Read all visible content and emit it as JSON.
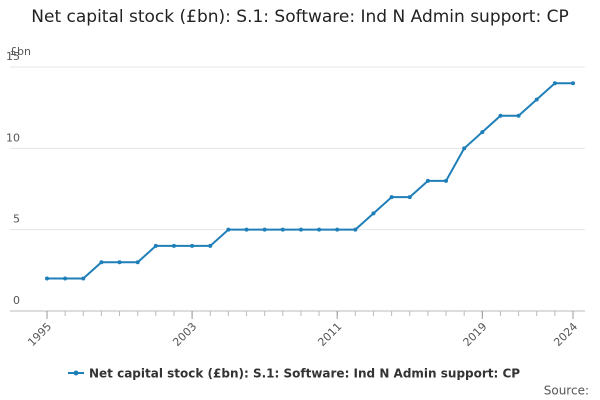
{
  "chart_data": {
    "type": "line",
    "title": "Net capital stock (£bn): S.1: Software: Ind N Admin support: CP",
    "y_label": "£bn",
    "source_label": "Source:",
    "x": [
      1995,
      1996,
      1997,
      1998,
      1999,
      2000,
      2001,
      2002,
      2003,
      2004,
      2005,
      2006,
      2007,
      2008,
      2009,
      2010,
      2011,
      2012,
      2013,
      2014,
      2015,
      2016,
      2017,
      2018,
      2019,
      2020,
      2021,
      2022,
      2023,
      2024
    ],
    "xlim": [
      1995,
      2024
    ],
    "xticks": [
      1995,
      2003,
      2011,
      2019,
      2024
    ],
    "series": [
      {
        "name": "Net capital stock (£bn): S.1: Software: Ind N Admin support: CP",
        "color": "#1f7fb8",
        "values": [
          2,
          2,
          2,
          3,
          3,
          3,
          4,
          4,
          4,
          4,
          5,
          5,
          5,
          5,
          5,
          5,
          5,
          5,
          6,
          7,
          7,
          8,
          8,
          10,
          11,
          12,
          12,
          13,
          14,
          14
        ]
      }
    ],
    "ylim": [
      0,
      15
    ],
    "yticks": [
      0,
      5,
      10,
      15
    ],
    "grid": true
  }
}
